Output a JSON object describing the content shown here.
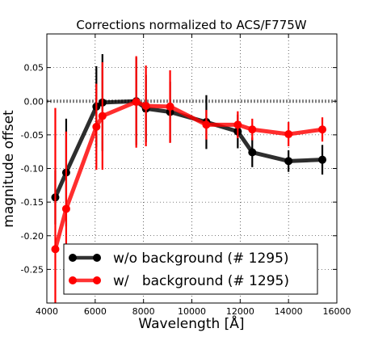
{
  "chart_data": {
    "type": "line",
    "title": "Corrections normalized to ACS/F775W",
    "xlabel": "Wavelength [Å]",
    "ylabel": "magnitude offset",
    "xlim": [
      4000,
      16000
    ],
    "ylim": [
      -0.3,
      0.1
    ],
    "x_ticks": [
      {
        "value": 4000,
        "label": "4000"
      },
      {
        "value": 6000,
        "label": "6000"
      },
      {
        "value": 8000,
        "label": "8000"
      },
      {
        "value": 10000,
        "label": "10000"
      },
      {
        "value": 12000,
        "label": "12000"
      },
      {
        "value": 14000,
        "label": "14000"
      },
      {
        "value": 16000,
        "label": "16000"
      }
    ],
    "y_ticks": [
      {
        "value": 0.05,
        "label": "0.05"
      },
      {
        "value": 0.0,
        "label": "0.00"
      },
      {
        "value": -0.05,
        "label": "-0.05"
      },
      {
        "value": -0.1,
        "label": "-0.10"
      },
      {
        "value": -0.15,
        "label": "-0.15"
      },
      {
        "value": -0.2,
        "label": "-0.20"
      },
      {
        "value": -0.25,
        "label": "-0.25"
      }
    ],
    "grid": true,
    "reference_line": {
      "y": 0.0,
      "style": "dotted",
      "color": "#808080"
    },
    "legend_placement": "bottom-center",
    "series": [
      {
        "name": "w/o background (# 1295)",
        "color": "#000000",
        "points": [
          {
            "x": 4350,
            "y": -0.143,
            "err": 0.04
          },
          {
            "x": 4800,
            "y": -0.106,
            "err": 0.08
          },
          {
            "x": 6050,
            "y": -0.008,
            "err": 0.06
          },
          {
            "x": 6300,
            "y": -0.002,
            "err": 0.072
          },
          {
            "x": 7700,
            "y": 0.0,
            "err": 0.065
          },
          {
            "x": 8100,
            "y": -0.011,
            "err": 0.05
          },
          {
            "x": 9100,
            "y": -0.016,
            "err": 0.045
          },
          {
            "x": 10600,
            "y": -0.031,
            "err": 0.04
          },
          {
            "x": 11900,
            "y": -0.045,
            "err": 0.025
          },
          {
            "x": 12500,
            "y": -0.076,
            "err": 0.022
          },
          {
            "x": 14000,
            "y": -0.089,
            "err": 0.016
          },
          {
            "x": 15400,
            "y": -0.087,
            "err": 0.022
          }
        ]
      },
      {
        "name": "w/   background (# 1295)",
        "color": "#ff0000",
        "points": [
          {
            "x": 4350,
            "y": -0.22,
            "err": 0.21
          },
          {
            "x": 4800,
            "y": -0.16,
            "err": 0.115
          },
          {
            "x": 6050,
            "y": -0.038,
            "err": 0.064
          },
          {
            "x": 6300,
            "y": -0.022,
            "err": 0.08
          },
          {
            "x": 7700,
            "y": -0.001,
            "err": 0.068
          },
          {
            "x": 8100,
            "y": -0.007,
            "err": 0.06
          },
          {
            "x": 9100,
            "y": -0.008,
            "err": 0.054
          },
          {
            "x": 10600,
            "y": -0.035,
            "err": 0.022
          },
          {
            "x": 11900,
            "y": -0.035,
            "err": 0.02
          },
          {
            "x": 12500,
            "y": -0.042,
            "err": 0.016
          },
          {
            "x": 14000,
            "y": -0.049,
            "err": 0.018
          },
          {
            "x": 15400,
            "y": -0.042,
            "err": 0.018
          }
        ]
      }
    ]
  }
}
